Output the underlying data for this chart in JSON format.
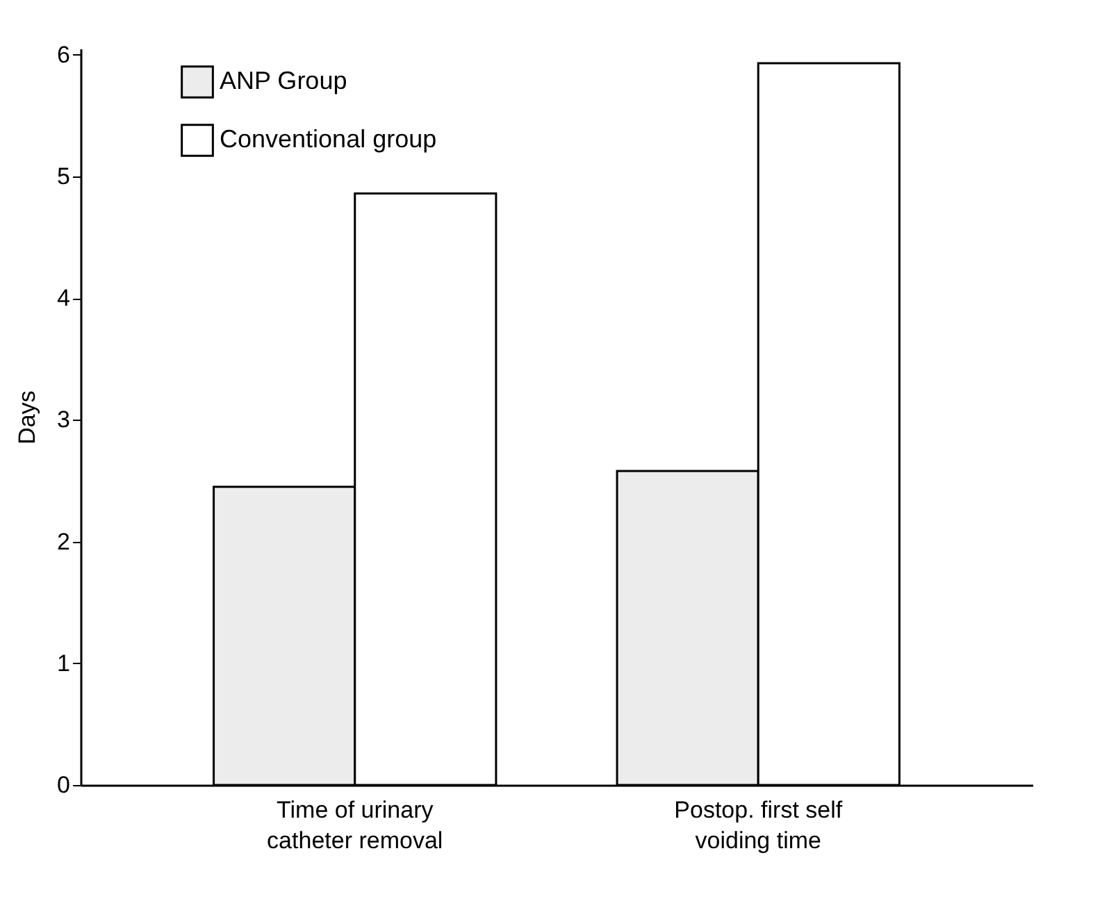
{
  "chart_data": {
    "type": "bar",
    "ylabel": "Days",
    "categories": [
      "Time of urinary\ncatheter removal",
      "Postop. first self\nvoiding time"
    ],
    "series": [
      {
        "name": "ANP Group",
        "color": "#ececec",
        "values": [
          2.45,
          2.58
        ]
      },
      {
        "name": "Conventional group",
        "color": "#ffffff",
        "values": [
          4.86,
          5.93
        ]
      }
    ],
    "ylim": [
      0,
      6.05
    ],
    "yticks": [
      0,
      1,
      2,
      3,
      4,
      5,
      6
    ],
    "grid": false,
    "legend": "top left"
  }
}
